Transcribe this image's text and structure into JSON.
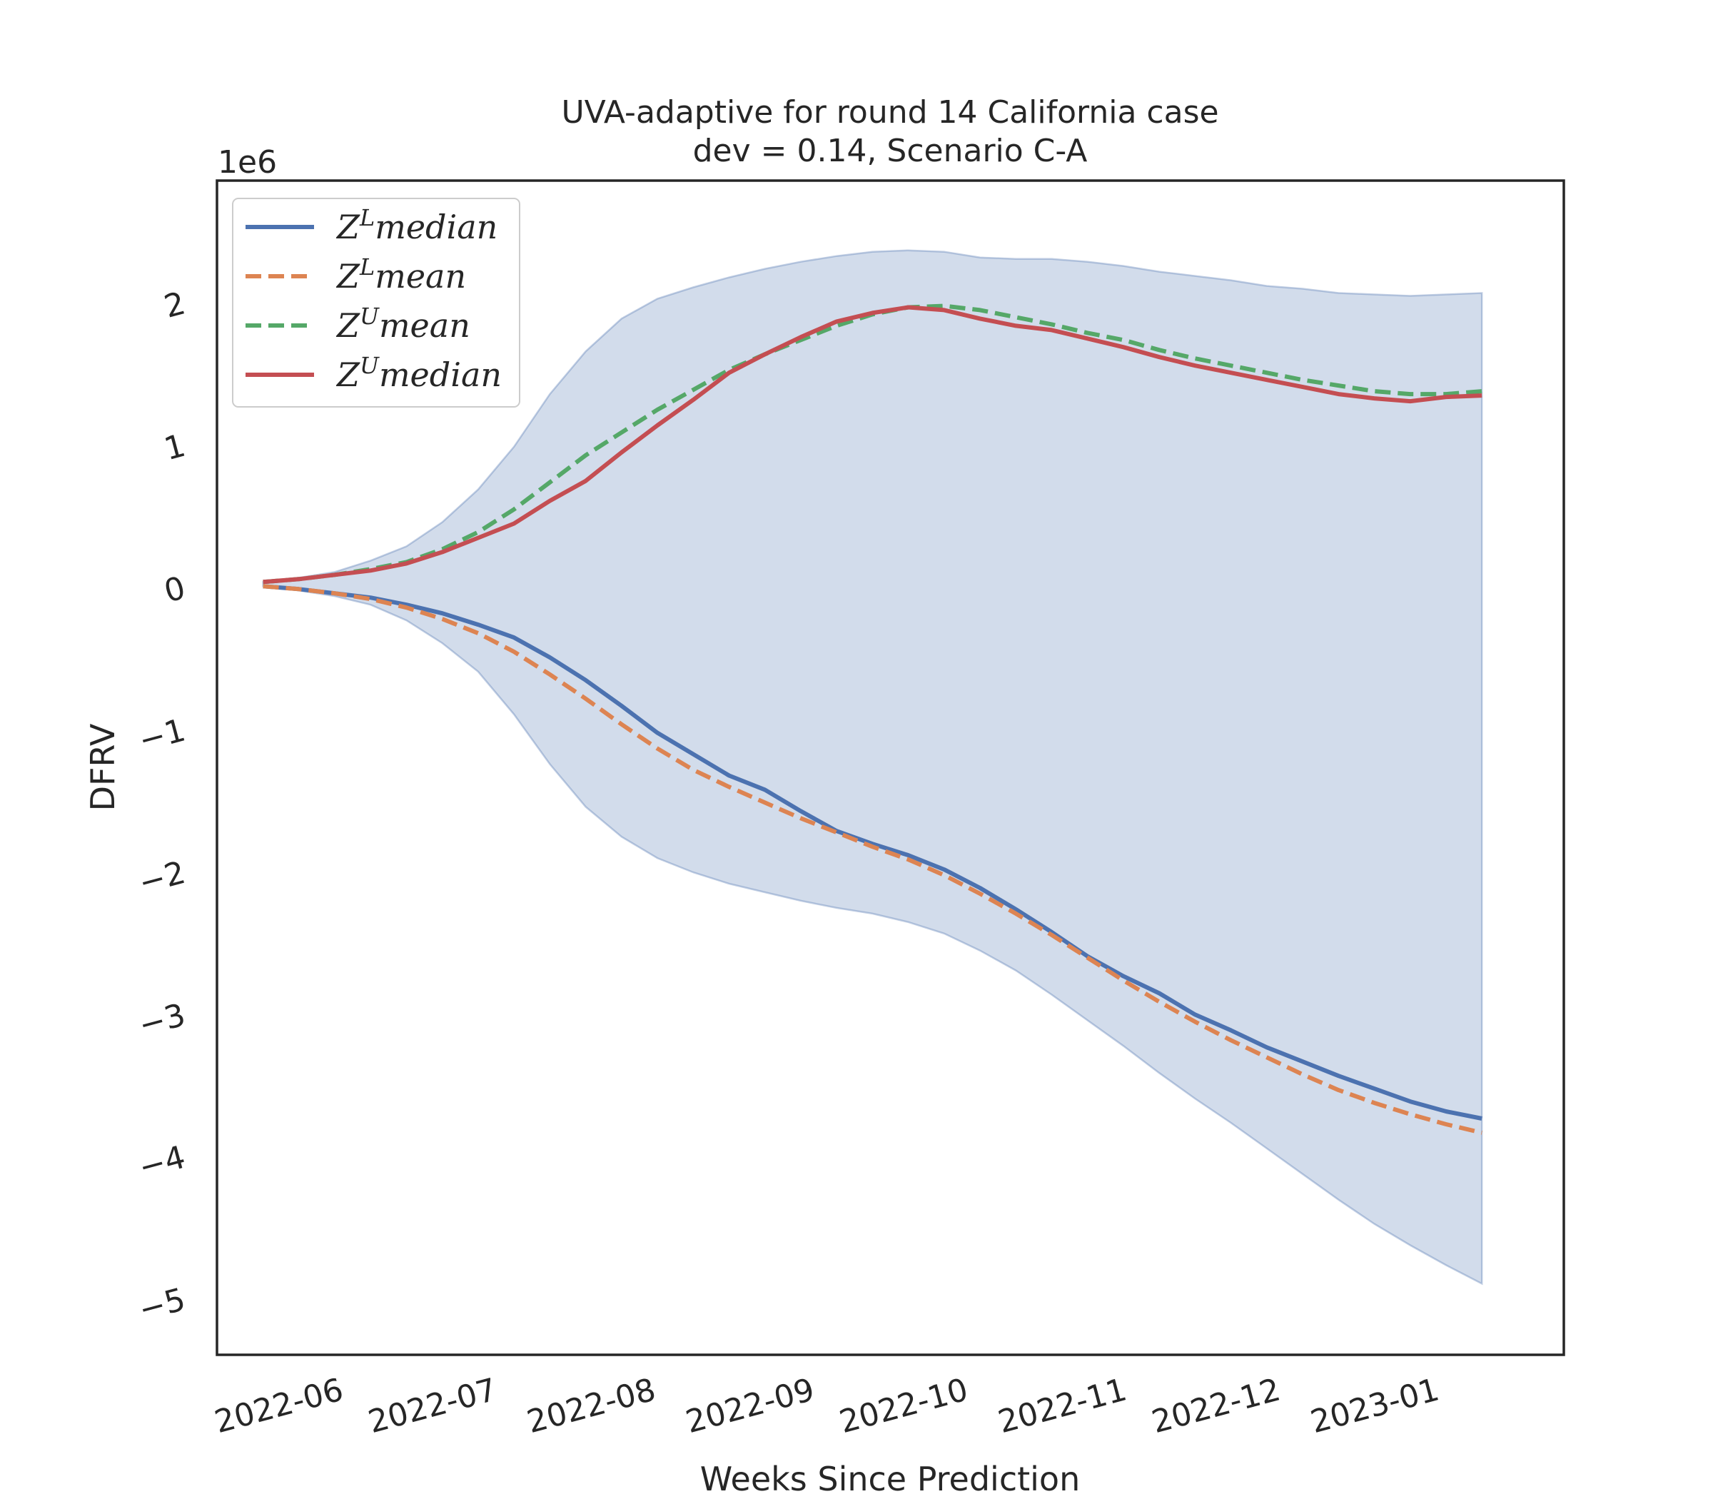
{
  "chart_data": {
    "type": "line",
    "title": "UVA-adaptive for round 14 California case",
    "subtitle": "dev = 0.14, Scenario C-A",
    "xlabel": "Weeks Since Prediction",
    "ylabel": "DFRV",
    "y_offset_label": "1e6",
    "y_scale": 1000000,
    "xlim": [
      "2022-05-07",
      "2023-01-25"
    ],
    "ylim": [
      -5.4,
      2.85
    ],
    "x_ticks": [
      "2022-06",
      "2022-07",
      "2022-08",
      "2022-09",
      "2022-10",
      "2022-11",
      "2022-12",
      "2023-01"
    ],
    "y_ticks": [
      -5,
      -4,
      -3,
      -2,
      -1,
      0,
      1,
      2
    ],
    "grid": false,
    "legend_position": "upper-left",
    "x": [
      "2022-05-16",
      "2022-05-23",
      "2022-05-30",
      "2022-06-06",
      "2022-06-13",
      "2022-06-20",
      "2022-06-27",
      "2022-07-04",
      "2022-07-11",
      "2022-07-18",
      "2022-07-25",
      "2022-08-01",
      "2022-08-08",
      "2022-08-15",
      "2022-08-22",
      "2022-08-29",
      "2022-09-05",
      "2022-09-12",
      "2022-09-19",
      "2022-09-26",
      "2022-10-03",
      "2022-10-10",
      "2022-10-17",
      "2022-10-24",
      "2022-10-31",
      "2022-11-07",
      "2022-11-14",
      "2022-11-21",
      "2022-11-28",
      "2022-12-05",
      "2022-12-12",
      "2022-12-19",
      "2022-12-26",
      "2023-01-02",
      "2023-01-09"
    ],
    "series": [
      {
        "name": "Z^L median",
        "legend_base": "Z",
        "legend_sup": "L",
        "legend_suffix": "median",
        "color": "#4c72b0",
        "dash": "solid",
        "values": [
          0.0,
          -0.02,
          -0.05,
          -0.08,
          -0.13,
          -0.19,
          -0.27,
          -0.36,
          -0.5,
          -0.66,
          -0.84,
          -1.03,
          -1.18,
          -1.33,
          -1.43,
          -1.58,
          -1.72,
          -1.81,
          -1.89,
          -1.99,
          -2.12,
          -2.27,
          -2.43,
          -2.6,
          -2.74,
          -2.86,
          -3.01,
          -3.12,
          -3.24,
          -3.34,
          -3.44,
          -3.53,
          -3.62,
          -3.69,
          -3.74
        ]
      },
      {
        "name": "Z^L mean",
        "legend_base": "Z",
        "legend_sup": "L",
        "legend_suffix": "mean",
        "color": "#dd8452",
        "dash": "dashed",
        "values": [
          0.0,
          -0.02,
          -0.05,
          -0.09,
          -0.15,
          -0.23,
          -0.33,
          -0.46,
          -0.62,
          -0.79,
          -0.97,
          -1.14,
          -1.29,
          -1.41,
          -1.52,
          -1.63,
          -1.73,
          -1.83,
          -1.92,
          -2.03,
          -2.16,
          -2.3,
          -2.45,
          -2.61,
          -2.77,
          -2.92,
          -3.06,
          -3.19,
          -3.31,
          -3.43,
          -3.54,
          -3.63,
          -3.71,
          -3.78,
          -3.84
        ]
      },
      {
        "name": "Z^U mean",
        "legend_base": "Z",
        "legend_sup": "U",
        "legend_suffix": "mean",
        "color": "#55a868",
        "dash": "dashed",
        "values": [
          0.03,
          0.05,
          0.08,
          0.12,
          0.17,
          0.26,
          0.38,
          0.54,
          0.73,
          0.92,
          1.08,
          1.24,
          1.38,
          1.52,
          1.63,
          1.73,
          1.83,
          1.91,
          1.96,
          1.97,
          1.94,
          1.89,
          1.84,
          1.78,
          1.73,
          1.66,
          1.6,
          1.55,
          1.5,
          1.45,
          1.41,
          1.37,
          1.35,
          1.35,
          1.37
        ]
      },
      {
        "name": "Z^U median",
        "legend_base": "Z",
        "legend_sup": "U",
        "legend_suffix": "median",
        "color": "#c44e52",
        "dash": "solid",
        "values": [
          0.03,
          0.05,
          0.08,
          0.11,
          0.16,
          0.24,
          0.34,
          0.44,
          0.6,
          0.74,
          0.94,
          1.13,
          1.31,
          1.5,
          1.63,
          1.75,
          1.86,
          1.92,
          1.96,
          1.94,
          1.88,
          1.83,
          1.8,
          1.74,
          1.68,
          1.61,
          1.55,
          1.5,
          1.45,
          1.4,
          1.35,
          1.32,
          1.3,
          1.33,
          1.34
        ]
      }
    ],
    "band": {
      "color": "#4c72b0",
      "upper": [
        0.03,
        0.06,
        0.1,
        0.18,
        0.28,
        0.45,
        0.68,
        0.98,
        1.35,
        1.65,
        1.88,
        2.02,
        2.1,
        2.17,
        2.23,
        2.28,
        2.32,
        2.35,
        2.36,
        2.35,
        2.31,
        2.3,
        2.3,
        2.28,
        2.25,
        2.21,
        2.18,
        2.15,
        2.11,
        2.09,
        2.06,
        2.05,
        2.04,
        2.05,
        2.06
      ],
      "lower": [
        0.0,
        -0.03,
        -0.07,
        -0.13,
        -0.24,
        -0.4,
        -0.6,
        -0.9,
        -1.25,
        -1.55,
        -1.76,
        -1.91,
        -2.01,
        -2.09,
        -2.15,
        -2.21,
        -2.26,
        -2.3,
        -2.36,
        -2.44,
        -2.56,
        -2.7,
        -2.87,
        -3.05,
        -3.23,
        -3.42,
        -3.6,
        -3.77,
        -3.95,
        -4.13,
        -4.31,
        -4.48,
        -4.63,
        -4.77,
        -4.9
      ]
    }
  }
}
